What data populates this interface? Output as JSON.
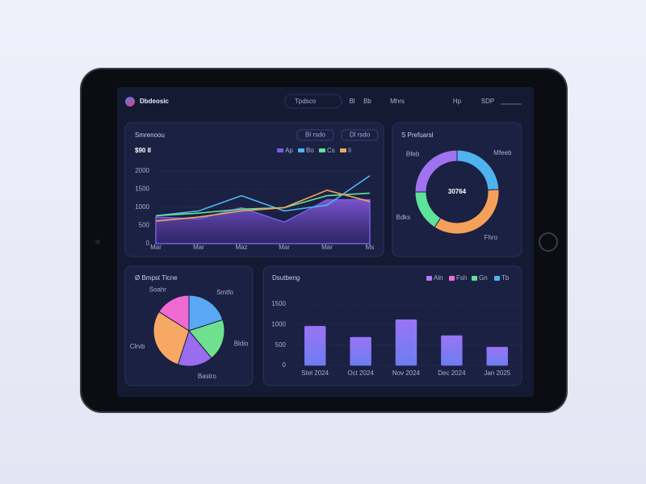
{
  "header": {
    "app_name": "Dbdeosic",
    "nav": [
      "Tpdsco",
      "Bl",
      "Bb",
      "Mhrs",
      "Hp",
      "SDP"
    ]
  },
  "revenue": {
    "title": "Smrenoou",
    "value": "$90 II",
    "buttons": [
      "Bl rsdo",
      "Dl rsdo"
    ],
    "chart": {
      "type": "line",
      "categories": [
        "Mar",
        "Mar",
        "Maz",
        "Mar",
        "Mar",
        "Ms"
      ],
      "series": [
        {
          "name": "Ap",
          "color": "#7b5ce6",
          "values": [
            730,
            680,
            990,
            590,
            1210,
            1210
          ]
        },
        {
          "name": "Bo",
          "color": "#4fb3f0",
          "values": [
            770,
            900,
            1320,
            900,
            1060,
            1870
          ]
        },
        {
          "name": "Cs",
          "color": "#5ee39a",
          "values": [
            770,
            840,
            950,
            990,
            1320,
            1390
          ]
        },
        {
          "name": "Ii",
          "color": "#f2a65a",
          "values": [
            620,
            730,
            900,
            990,
            1470,
            1160
          ]
        }
      ],
      "ylim": [
        0,
        2000
      ],
      "yticks": [
        0,
        500,
        1000,
        1500,
        2000
      ],
      "grid": true,
      "legend": "top-right"
    }
  },
  "breakdown": {
    "title": "S Prefuarsl",
    "chart": {
      "type": "donut",
      "center_label": "30764",
      "categories": [
        "Mfeeb",
        "Fhro",
        "Bdks",
        "Bfeb"
      ],
      "values": [
        24,
        35,
        16,
        25
      ],
      "colors": [
        "#4fb3f0",
        "#f5a05a",
        "#5ee39a",
        "#a072f0"
      ]
    }
  },
  "share": {
    "title": "Ø Bmpst Tlcne",
    "chart": {
      "type": "pie",
      "categories": [
        "Smtfo",
        "Bldio",
        "Bastro",
        "Clrvb",
        "Soahr"
      ],
      "values": [
        20,
        19,
        16,
        29,
        16
      ],
      "colors": [
        "#58a8f5",
        "#6fe08f",
        "#9a6cf0",
        "#f8a865",
        "#f06ad4"
      ]
    }
  },
  "bars": {
    "title": "Dsutbeng",
    "legend": [
      {
        "name": "Aln",
        "color": "#b07af5"
      },
      {
        "name": "Fsh",
        "color": "#f06ad4"
      },
      {
        "name": "Gn",
        "color": "#5ee39a"
      },
      {
        "name": "Tb",
        "color": "#4fb3f0"
      }
    ],
    "chart": {
      "type": "bar",
      "categories": [
        "Stel 2024",
        "Oct 2024",
        "Nov 2024",
        "Dec 2024",
        "Jan 2025"
      ],
      "values": [
        960,
        690,
        1120,
        730,
        450
      ],
      "color": "#8a6cf2",
      "ylim": [
        0,
        1500
      ],
      "yticks": [
        0,
        500,
        1000,
        1500
      ],
      "grid": true
    }
  }
}
